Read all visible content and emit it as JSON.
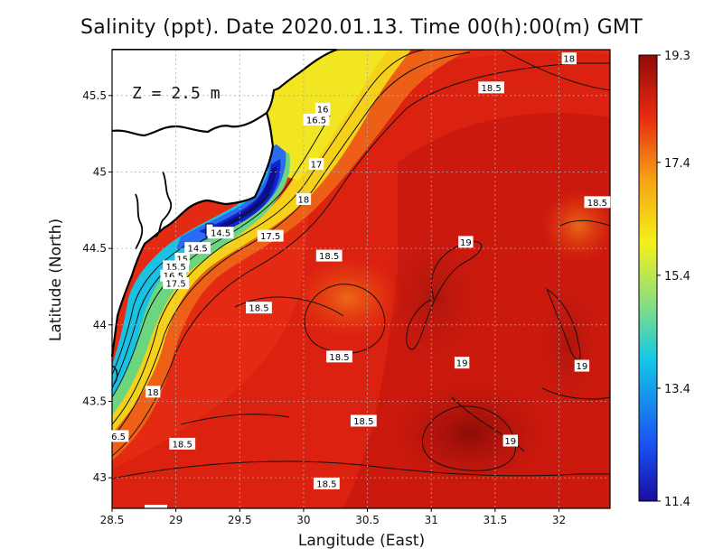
{
  "title": "Salinity (ppt). Date 2020.01.13. Time 00(h):00(m) GMT",
  "depth_label": "Z = 2.5 m",
  "chart_data": {
    "type": "heatmap",
    "title": "Salinity (ppt). Date 2020.01.13. Time 00(h):00(m) GMT",
    "xlabel": "Langitude (East)",
    "ylabel": "Latitude (North)",
    "xlim": [
      28.5,
      32.4
    ],
    "ylim": [
      42.8,
      45.8
    ],
    "x_ticks": [
      "28.5",
      "29",
      "29.5",
      "30",
      "30.5",
      "31",
      "31.5",
      "32"
    ],
    "x_tick_values": [
      28.5,
      29,
      29.5,
      30,
      30.5,
      31,
      31.5,
      32
    ],
    "y_ticks": [
      "45.5",
      "45",
      "44.5",
      "44",
      "43.5",
      "43"
    ],
    "y_tick_values": [
      45.5,
      45,
      44.5,
      44,
      43.5,
      43
    ],
    "grid": true,
    "colorbar": {
      "min": 11.4,
      "max": 19.3,
      "tick_labels": [
        "19.3",
        "17.4",
        "15.4",
        "13.4",
        "11.4"
      ],
      "tick_values": [
        19.3,
        17.4,
        15.4,
        13.4,
        11.4
      ],
      "colors": [
        "#1a0d9e",
        "#1a4df2",
        "#13c9e6",
        "#8fe07a",
        "#f5f01a",
        "#f5a314",
        "#ea2b10",
        "#8e0b07"
      ]
    },
    "contour_labels": [
      {
        "text": "18",
        "lon": 32.08,
        "lat": 45.74
      },
      {
        "text": "18.5",
        "lon": 31.47,
        "lat": 45.55
      },
      {
        "text": "16",
        "lon": 30.15,
        "lat": 45.41
      },
      {
        "text": "16.5",
        "lon": 30.1,
        "lat": 45.34
      },
      {
        "text": "17",
        "lon": 30.1,
        "lat": 45.05
      },
      {
        "text": "18",
        "lon": 30.0,
        "lat": 44.82
      },
      {
        "text": "18.5",
        "lon": 32.3,
        "lat": 44.8
      },
      {
        "text": "17.5",
        "lon": 29.74,
        "lat": 44.58
      },
      {
        "text": "19",
        "lon": 31.27,
        "lat": 44.54
      },
      {
        "text": "14.5",
        "lon": 29.35,
        "lat": 44.6
      },
      {
        "text": "14.5",
        "lon": 29.17,
        "lat": 44.5
      },
      {
        "text": "15",
        "lon": 29.05,
        "lat": 44.43
      },
      {
        "text": "15.5",
        "lon": 29.0,
        "lat": 44.38
      },
      {
        "text": "16.5",
        "lon": 28.98,
        "lat": 44.32
      },
      {
        "text": "17.5",
        "lon": 29.0,
        "lat": 44.27
      },
      {
        "text": "18.5",
        "lon": 30.2,
        "lat": 44.45
      },
      {
        "text": "18.5",
        "lon": 29.65,
        "lat": 44.11
      },
      {
        "text": "18.5",
        "lon": 30.28,
        "lat": 43.79
      },
      {
        "text": "19",
        "lon": 31.24,
        "lat": 43.75
      },
      {
        "text": "19",
        "lon": 32.18,
        "lat": 43.73
      },
      {
        "text": "18",
        "lon": 28.82,
        "lat": 43.56
      },
      {
        "text": "18.5",
        "lon": 30.47,
        "lat": 43.37
      },
      {
        "text": "6.5",
        "lon": 28.55,
        "lat": 43.27
      },
      {
        "text": "18.5",
        "lon": 29.05,
        "lat": 43.22
      },
      {
        "text": "19",
        "lon": 31.62,
        "lat": 43.24
      },
      {
        "text": "18.5",
        "lon": 30.18,
        "lat": 42.96
      }
    ]
  }
}
